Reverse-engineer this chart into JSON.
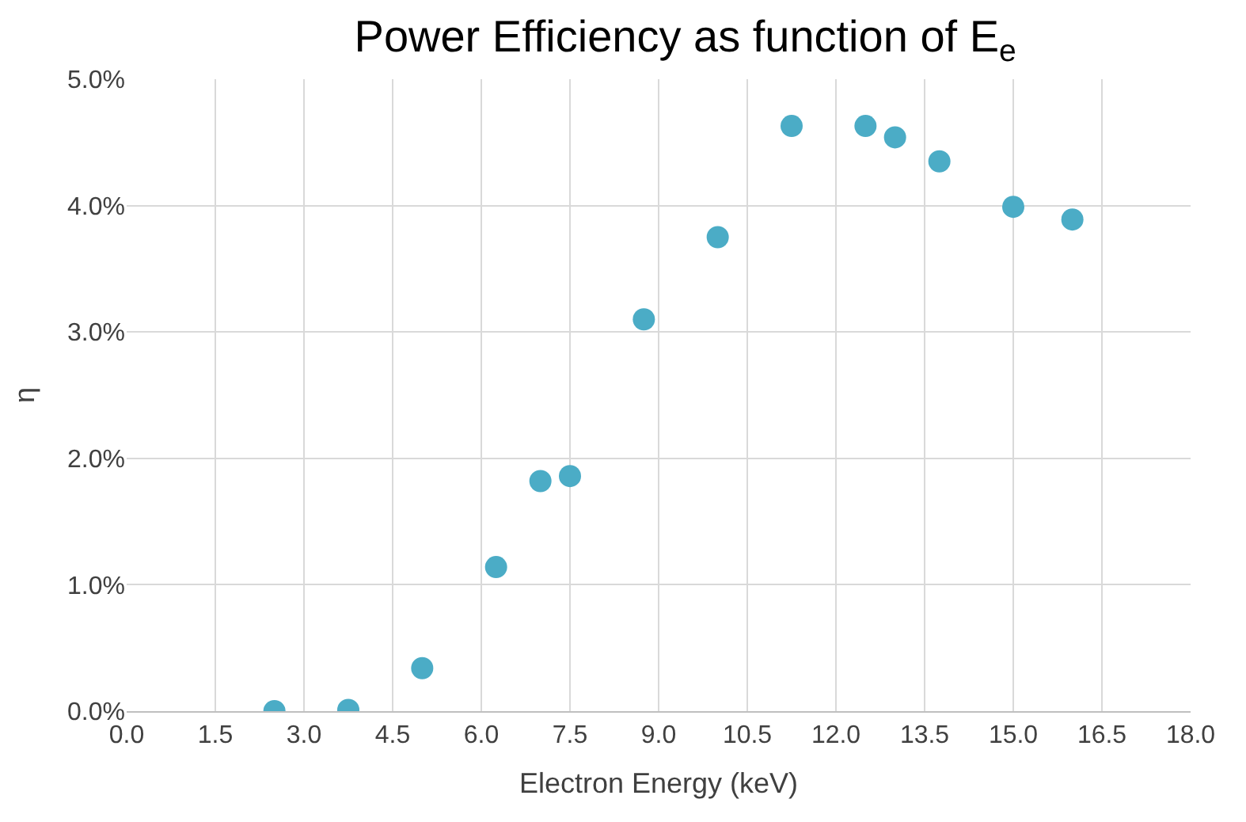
{
  "chart_data": {
    "type": "scatter",
    "title": "Power Efficiency as function of E$_{e}$",
    "xlabel": "Electron Energy (keV)",
    "ylabel": "η",
    "x": [
      2.5,
      3.75,
      5.0,
      6.25,
      7.0,
      7.5,
      8.75,
      10.0,
      11.25,
      12.5,
      13.0,
      13.75,
      15.0,
      16.0
    ],
    "series": [
      {
        "color": "#4bacc6",
        "values": [
          0.0,
          0.01,
          0.34,
          1.14,
          1.82,
          1.86,
          3.1,
          3.75,
          4.63,
          4.63,
          4.54,
          4.35,
          3.99,
          3.89
        ]
      }
    ],
    "xlim": [
      0,
      18
    ],
    "xticks": [
      {
        "value": 0,
        "label": "0.0"
      },
      1.5,
      {
        "value": 3,
        "label": "3.0"
      },
      4.5,
      {
        "value": 6,
        "label": "6.0"
      },
      7.5,
      {
        "value": 9,
        "label": "9.0"
      },
      10.5,
      {
        "value": 12,
        "label": "12.0"
      },
      13.5,
      {
        "value": 15,
        "label": "15.0"
      },
      16.5,
      {
        "value": 18,
        "label": "18.0"
      }
    ],
    "ylim": [
      0,
      5
    ],
    "yticks": [
      {
        "value": 0,
        "label": "0.0%"
      },
      {
        "value": 1,
        "label": "1.0%"
      },
      {
        "value": 2,
        "label": "2.0%"
      },
      {
        "value": 3,
        "label": "3.0%"
      },
      {
        "value": 4,
        "label": "4.0%"
      },
      {
        "value": 5,
        "label": "5.0%"
      }
    ],
    "grid": true,
    "marker": "circle"
  }
}
